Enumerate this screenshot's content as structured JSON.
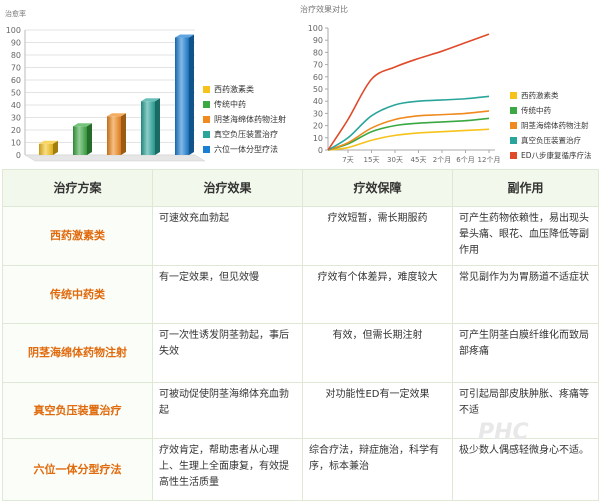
{
  "chart_data": [
    {
      "type": "bar",
      "ylabel": "治愈率",
      "ylim": [
        0,
        100
      ],
      "yticks": [
        0,
        10,
        20,
        30,
        40,
        50,
        60,
        70,
        80,
        90,
        100
      ],
      "categories": [
        "西药激素类",
        "传统中药",
        "阴茎海绵体药物注射",
        "真空负压装置治疗",
        "六位一体分型疗法"
      ],
      "values": [
        9,
        23,
        31,
        43,
        94
      ],
      "colors": [
        "#f6c21b",
        "#3aa843",
        "#f08a1e",
        "#2aa59b",
        "#1b7fd4"
      ],
      "legend_position": "right"
    },
    {
      "type": "line",
      "title": "治疗效果对比",
      "ylim": [
        0,
        100
      ],
      "yticks": [
        0,
        10,
        20,
        30,
        40,
        50,
        60,
        70,
        80,
        90,
        100
      ],
      "categories": [
        "7天",
        "15天",
        "30天",
        "45天",
        "2个月",
        "6个月",
        "12个月"
      ],
      "series": [
        {
          "name": "西药激素类",
          "color": "#f6c21b",
          "values": [
            2,
            8,
            12,
            14,
            15,
            16,
            17
          ]
        },
        {
          "name": "传统中药",
          "color": "#3aa843",
          "values": [
            5,
            15,
            20,
            22,
            23,
            24,
            26
          ]
        },
        {
          "name": "阴茎海绵体药物注射",
          "color": "#f08a1e",
          "values": [
            6,
            18,
            25,
            28,
            29,
            30,
            32
          ]
        },
        {
          "name": "真空负压装置治疗",
          "color": "#2aa59b",
          "values": [
            10,
            28,
            37,
            40,
            41,
            42,
            44
          ]
        },
        {
          "name": "ED八步康复循序疗法",
          "color": "#e04a2a",
          "values": [
            25,
            58,
            68,
            75,
            81,
            88,
            95
          ]
        }
      ],
      "legend_position": "right"
    }
  ],
  "table": {
    "headers": [
      "治疗方案",
      "治疗效果",
      "疗效保障",
      "副作用"
    ],
    "rows": [
      {
        "plan": "西药激素类",
        "effect": "可速效充血勃起",
        "guarantee": "疗效短暂，需长期服药",
        "side": "可产生药物依赖性，易出现头晕头痛、眼花、血压降低等副作用"
      },
      {
        "plan": "传统中药类",
        "effect": "有一定效果，但见效慢",
        "guarantee": "疗效有个体差异，难度较大",
        "side": "常见副作为为胃肠道不适症状"
      },
      {
        "plan": "阴茎海绵体药物注射",
        "effect": "可一次性诱发阴茎勃起，事后失效",
        "guarantee": "有效，但需长期注射",
        "side": "可产生阴茎白膜纤维化而致局部疼痛"
      },
      {
        "plan": "真空负压装置治疗",
        "effect": "可被动促使阴茎海绵体充血勃起",
        "guarantee": "对功能性ED有一定效果",
        "side": "可引起局部皮肤肿胀、疼痛等不适"
      },
      {
        "plan": "六位一体分型疗法",
        "effect": "疗效肯定，帮助患者从心理上、生理上全面康复，有效提高性生活质量",
        "guarantee": "综合疗法，辩症施治，科学有序，标本兼治",
        "side": "极少数人偶感轻微身心不适。"
      }
    ]
  },
  "watermark": "PHC"
}
